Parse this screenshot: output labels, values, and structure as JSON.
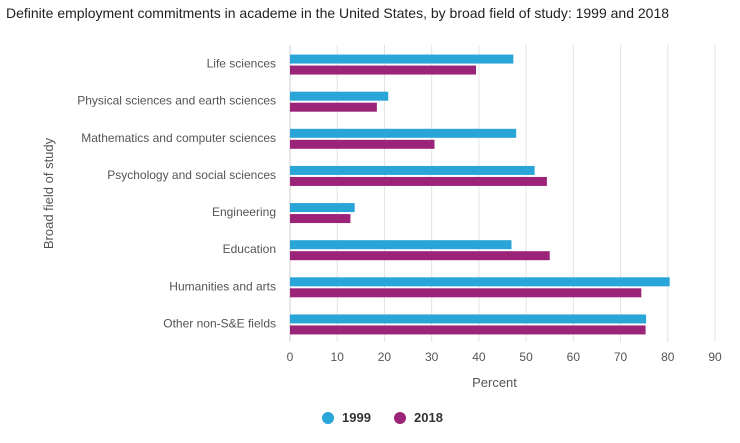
{
  "chart_data": {
    "type": "bar",
    "orientation": "horizontal",
    "title": "Definite employment commitments in academe in the United States, by broad field of study: 1999 and 2018",
    "xlabel": "Percent",
    "ylabel": "Broad field of study",
    "xlim": [
      0,
      90
    ],
    "xticks": [
      0,
      10,
      20,
      30,
      40,
      50,
      60,
      70,
      80,
      90
    ],
    "grid": "vertical",
    "legend_position": "bottom",
    "categories": [
      "Life sciences",
      "Physical sciences and earth sciences",
      "Mathematics and computer sciences",
      "Psychology and social sciences",
      "Engineering",
      "Education",
      "Humanities and arts",
      "Other non-S&E fields"
    ],
    "series": [
      {
        "name": "1999",
        "color": "#2aa5d8",
        "values": [
          47.3,
          20.8,
          47.9,
          51.8,
          13.7,
          46.9,
          80.4,
          75.4
        ]
      },
      {
        "name": "2018",
        "color": "#9b2478",
        "values": [
          39.4,
          18.4,
          30.6,
          54.4,
          12.8,
          55.0,
          74.4,
          75.3
        ]
      }
    ]
  }
}
